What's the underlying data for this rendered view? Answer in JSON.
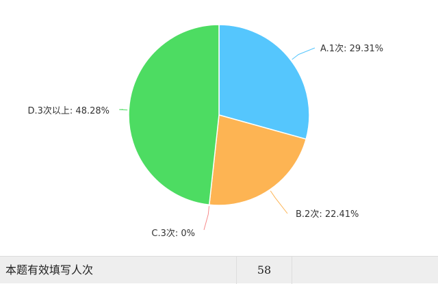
{
  "chart_data": {
    "type": "pie",
    "categories": [
      "A.1次",
      "B.2次",
      "C.3次",
      "D.3次以上"
    ],
    "values": [
      29.31,
      22.41,
      0,
      48.28
    ],
    "labels": [
      "A.1次: 29.31%",
      "B.2次: 22.41%",
      "C.3次: 0%",
      "D.3次以上: 48.28%"
    ],
    "colors": [
      "#55c6fd",
      "#fdb453",
      "#f78b8b",
      "#4ddc62"
    ],
    "legend": "none"
  },
  "summary": {
    "label": "本题有效填写人次",
    "value": "58"
  }
}
